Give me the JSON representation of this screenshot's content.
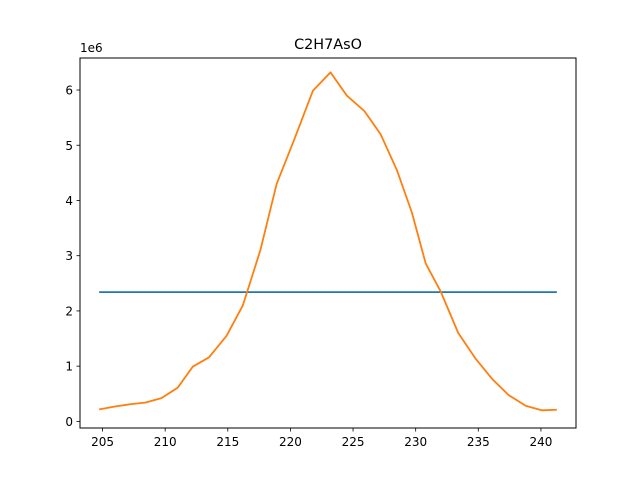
{
  "chart_data": {
    "type": "line",
    "title": "C2H7AsO",
    "xlabel": "",
    "ylabel": "",
    "y_offset_label": "1e6",
    "xlim": [
      203.2,
      242.8
    ],
    "ylim": [
      -0.12,
      6.58
    ],
    "xticks": [
      205,
      210,
      215,
      220,
      225,
      230,
      235,
      240
    ],
    "yticks": [
      0,
      1,
      2,
      3,
      4,
      5,
      6
    ],
    "grid": false,
    "series": [
      {
        "color": "#1f77b4",
        "x": [
          204.8,
          241.2
        ],
        "y": [
          2.34,
          2.34
        ]
      },
      {
        "color": "#ff7f0e",
        "x": [
          204.8,
          206.0,
          207.2,
          208.4,
          209.7,
          211.0,
          212.2,
          213.5,
          214.9,
          216.2,
          217.6,
          218.9,
          220.3,
          221.8,
          223.2,
          224.5,
          225.9,
          227.2,
          228.5,
          229.7,
          230.8,
          232.0,
          233.4,
          234.8,
          236.1,
          237.4,
          238.8,
          240.1,
          241.2
        ],
        "y": [
          0.22,
          0.27,
          0.31,
          0.34,
          0.42,
          0.61,
          0.99,
          1.16,
          1.55,
          2.1,
          3.1,
          4.3,
          5.1,
          5.99,
          6.32,
          5.9,
          5.62,
          5.2,
          4.55,
          3.78,
          2.86,
          2.35,
          1.6,
          1.13,
          0.77,
          0.48,
          0.28,
          0.2,
          0.21
        ]
      }
    ]
  }
}
